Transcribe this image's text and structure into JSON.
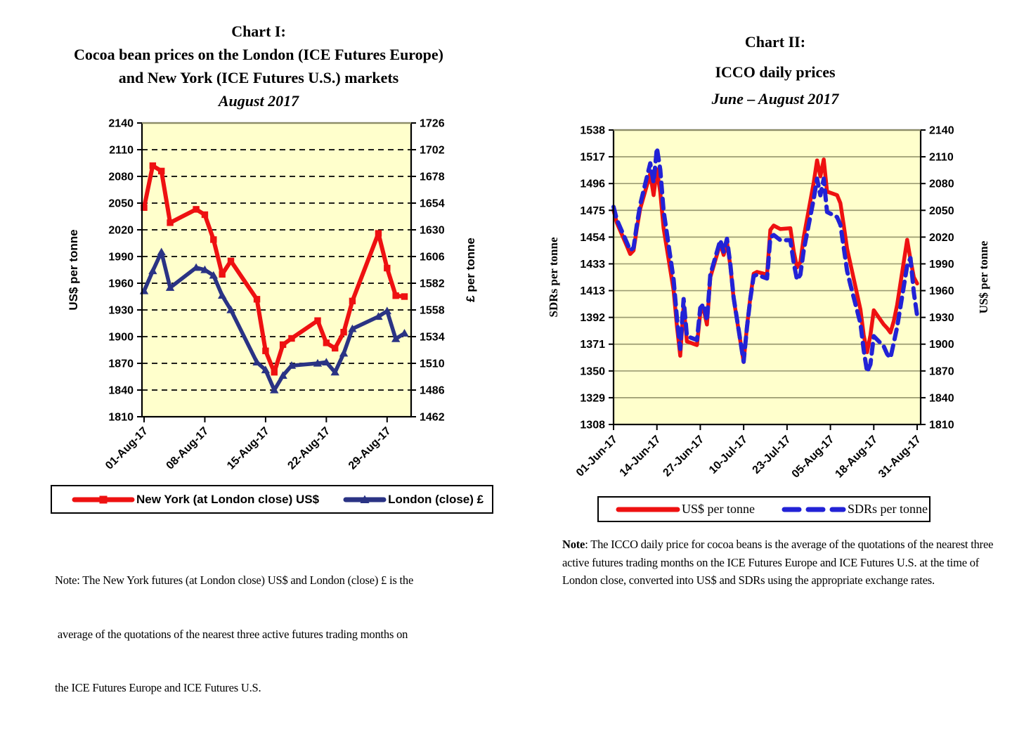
{
  "colors": {
    "plot_background": "#ffffcc",
    "red": "#ee1111",
    "navy": "#2a3384",
    "blue": "#2222d6",
    "grid_chart1": "#000000",
    "grid_chart2": "#9c9c72",
    "border": "#000000",
    "top_edge": "#8c8c66"
  },
  "chart_data": [
    {
      "id": "chart1",
      "type": "line",
      "title_lines": [
        "Chart I:",
        "Cocoa bean prices on the London (ICE Futures Europe)",
        "and New York (ICE Futures U.S.) markets"
      ],
      "subtitle": "August 2017",
      "grid": "dashed",
      "plot_bg": "#ffffcc",
      "grid_color": "#000000",
      "grid_dash": "8 6",
      "y_left": {
        "label": "US$ per tonne",
        "min": 1810,
        "max": 2140,
        "ticks": [
          2140,
          2110,
          2080,
          2050,
          2020,
          1990,
          1960,
          1930,
          1900,
          1870,
          1840,
          1810
        ]
      },
      "y_right": {
        "label": "£ per tonne",
        "min": 1462,
        "max": 1726,
        "ticks": [
          1726,
          1702,
          1678,
          1654,
          1630,
          1606,
          1582,
          1558,
          1534,
          1510,
          1486,
          1462
        ]
      },
      "x_axis": {
        "domain": [
          1,
          31
        ],
        "ticks": [
          {
            "label": "01-Aug-17",
            "day": 1
          },
          {
            "label": "08-Aug-17",
            "day": 8
          },
          {
            "label": "15-Aug-17",
            "day": 15
          },
          {
            "label": "22-Aug-17",
            "day": 22
          },
          {
            "label": "29-Aug-17",
            "day": 29
          }
        ]
      },
      "series": [
        {
          "id": "london-close",
          "name": "London (close) £",
          "axis": "right",
          "color": "#2a3384",
          "width": 5.5,
          "marker": "triangle",
          "days": [
            1,
            2,
            3,
            4,
            7,
            8,
            9,
            10,
            11,
            14,
            15,
            16,
            17,
            18,
            21,
            22,
            23,
            24,
            25,
            28,
            29,
            30,
            31
          ],
          "values": [
            1575,
            1593,
            1610,
            1578,
            1596,
            1594,
            1589,
            1571,
            1558,
            1511,
            1504,
            1486,
            1499,
            1508,
            1510,
            1511,
            1502,
            1519,
            1541,
            1552,
            1557,
            1532,
            1537
          ]
        },
        {
          "id": "new-york",
          "name": "New York (at London close) US$",
          "axis": "left",
          "color": "#ee1111",
          "width": 6,
          "marker": "square",
          "days": [
            1,
            2,
            3,
            4,
            7,
            8,
            9,
            10,
            11,
            14,
            15,
            16,
            17,
            18,
            21,
            22,
            23,
            24,
            25,
            28,
            29,
            30,
            31
          ],
          "values": [
            2045,
            2092,
            2086,
            2028,
            2043,
            2037,
            2009,
            1970,
            1985,
            1942,
            1884,
            1860,
            1891,
            1898,
            1918,
            1893,
            1887,
            1905,
            1940,
            2016,
            1977,
            1946,
            1945
          ]
        }
      ],
      "legend_order": [
        1,
        0
      ],
      "note_lines": [
        "Note: The New York futures (at London close) US$ and London (close) £ is the",
        " average of the quotations of the nearest three active futures trading months on",
        "the ICE Futures Europe and ICE Futures U.S."
      ]
    },
    {
      "id": "chart2",
      "type": "line",
      "title_lines": [
        "Chart II:",
        "ICCO daily prices"
      ],
      "subtitle": "June – August 2017",
      "grid": "solid",
      "plot_bg": "#ffffcc",
      "grid_color": "#9c9c72",
      "grid_dash": "",
      "y_left": {
        "label": "SDRs per tonne",
        "min": 1308,
        "max": 1538,
        "ticks": [
          1538,
          1517,
          1496,
          1475,
          1454,
          1433,
          1413,
          1392,
          1371,
          1350,
          1329,
          1308
        ]
      },
      "y_right": {
        "label": "US$ per tonne",
        "min": 1810,
        "max": 2140,
        "ticks": [
          2140,
          2110,
          2080,
          2050,
          2020,
          1990,
          1960,
          1930,
          1900,
          1870,
          1840,
          1810
        ]
      },
      "x_axis": {
        "domain": [
          0,
          91
        ],
        "ticks": [
          {
            "label": "01-Jun-17",
            "day": 0
          },
          {
            "label": "14-Jun-17",
            "day": 13
          },
          {
            "label": "27-Jun-17",
            "day": 26
          },
          {
            "label": "10-Jul-17",
            "day": 39
          },
          {
            "label": "23-Jul-17",
            "day": 52
          },
          {
            "label": "05-Aug-17",
            "day": 65
          },
          {
            "label": "18-Aug-17",
            "day": 78
          },
          {
            "label": "31-Aug-17",
            "day": 91
          }
        ]
      },
      "series": [
        {
          "id": "usd-per-tonne",
          "name": "US$ per tonne",
          "axis": "right",
          "color": "#ee1111",
          "width": 5.5,
          "marker": "none",
          "days": [
            0,
            1,
            4,
            5,
            6,
            7,
            8,
            11,
            12,
            13,
            14,
            15,
            18,
            19,
            20,
            21,
            22,
            25,
            26,
            27,
            28,
            29,
            32,
            33,
            34,
            35,
            36,
            39,
            40,
            41,
            42,
            43,
            46,
            47,
            48,
            49,
            50,
            53,
            54,
            55,
            56,
            57,
            60,
            61,
            62,
            63,
            64,
            67,
            68,
            69,
            70,
            71,
            74,
            75,
            76,
            77,
            78,
            81,
            82,
            83,
            84,
            85,
            88,
            89,
            90,
            91
          ],
          "values": [
            2050,
            2036,
            2010,
            2001,
            2005,
            2030,
            2052,
            2091,
            2067,
            2096,
            2070,
            2030,
            1960,
            1920,
            1887,
            1943,
            1903,
            1899,
            1935,
            1939,
            1922,
            1975,
            2013,
            2000,
            2014,
            1988,
            1951,
            1880,
            1920,
            1952,
            1979,
            1981,
            1978,
            2028,
            2033,
            2031,
            2029,
            2030,
            2004,
            1986,
            1992,
            2020,
            2081,
            2106,
            2088,
            2107,
            2071,
            2067,
            2058,
            2033,
            2007,
            1990,
            1939,
            1910,
            1891,
            1910,
            1938,
            1922,
            1918,
            1913,
            1926,
            1944,
            2017,
            1995,
            1975,
            1968
          ]
        },
        {
          "id": "sdrs-per-tonne",
          "name": "SDRs per tonne",
          "axis": "left",
          "color": "#2222d6",
          "width": 6,
          "marker": "none",
          "dash": "14 9",
          "days": [
            0,
            1,
            4,
            5,
            6,
            7,
            8,
            11,
            12,
            13,
            14,
            15,
            18,
            19,
            20,
            21,
            22,
            25,
            26,
            27,
            28,
            29,
            32,
            33,
            34,
            35,
            36,
            39,
            40,
            41,
            42,
            43,
            46,
            47,
            48,
            49,
            50,
            53,
            54,
            55,
            56,
            57,
            60,
            61,
            62,
            63,
            64,
            67,
            68,
            69,
            70,
            71,
            74,
            75,
            76,
            77,
            78,
            81,
            82,
            83,
            84,
            85,
            88,
            89,
            90,
            91
          ],
          "values": [
            1478,
            1468,
            1450,
            1444,
            1446,
            1464,
            1480,
            1512,
            1497,
            1524,
            1507,
            1475,
            1421,
            1391,
            1367,
            1406,
            1377,
            1374,
            1399,
            1402,
            1389,
            1425,
            1452,
            1443,
            1453,
            1433,
            1407,
            1357,
            1384,
            1406,
            1424,
            1425,
            1422,
            1454,
            1456,
            1454,
            1452,
            1452,
            1434,
            1421,
            1425,
            1444,
            1484,
            1500,
            1487,
            1500,
            1474,
            1470,
            1464,
            1446,
            1428,
            1417,
            1387,
            1366,
            1349,
            1355,
            1377,
            1369,
            1363,
            1360,
            1372,
            1384,
            1432,
            1438,
            1411,
            1393
          ]
        }
      ],
      "legend_order": [
        0,
        1
      ],
      "note_bold": "Note",
      "note_rest": ": The ICCO daily price for cocoa beans is the average of the quotations of the nearest three active futures trading months on the ICE Futures Europe and ICE Futures U.S. at the time of London close, converted into US$ and SDRs using the appropriate exchange rates."
    }
  ]
}
